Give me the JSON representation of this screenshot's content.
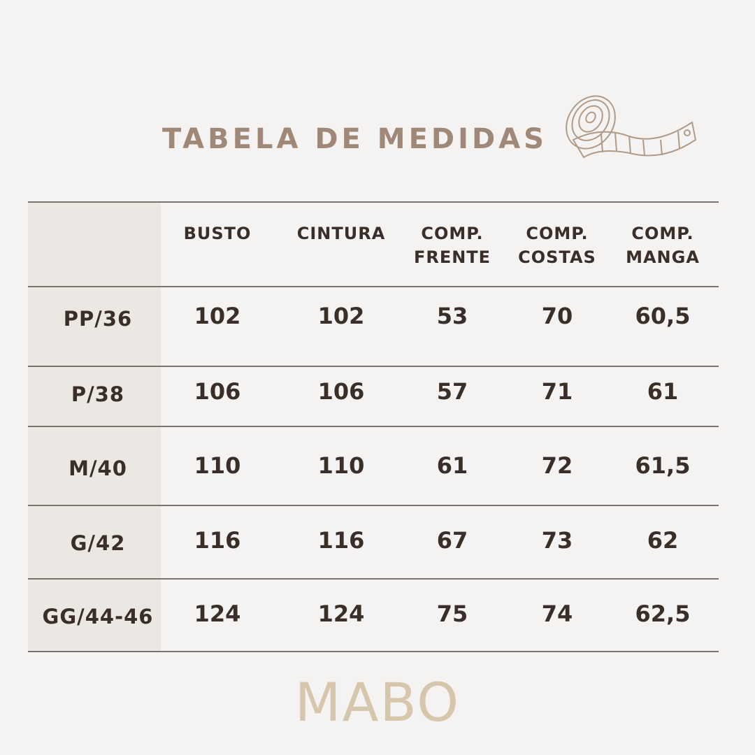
{
  "title": "TABELA DE MEDIDAS",
  "icon": "measuring-tape-icon",
  "colors": {
    "title": "#a08878",
    "text": "#3a2e28",
    "logo": "#d6c6ac",
    "background": "#f4f3f2",
    "label_column": "#ebe8e4"
  },
  "table": {
    "headers": [
      {
        "line1": "BUSTO",
        "line2": ""
      },
      {
        "line1": "CINTURA",
        "line2": ""
      },
      {
        "line1": "COMP.",
        "line2": "FRENTE"
      },
      {
        "line1": "COMP.",
        "line2": "COSTAS"
      },
      {
        "line1": "COMP.",
        "line2": "MANGA"
      }
    ],
    "rows": [
      {
        "size": "PP/36",
        "values": [
          "102",
          "102",
          "53",
          "70",
          "60,5"
        ]
      },
      {
        "size": "P/38",
        "values": [
          "106",
          "106",
          "57",
          "71",
          "61"
        ]
      },
      {
        "size": "M/40",
        "values": [
          "110",
          "110",
          "61",
          "72",
          "61,5"
        ]
      },
      {
        "size": "G/42",
        "values": [
          "116",
          "116",
          "67",
          "73",
          "62"
        ]
      },
      {
        "size": "GG/44-46",
        "values": [
          "124",
          "124",
          "75",
          "74",
          "62,5"
        ]
      }
    ]
  },
  "logo": "MABO"
}
